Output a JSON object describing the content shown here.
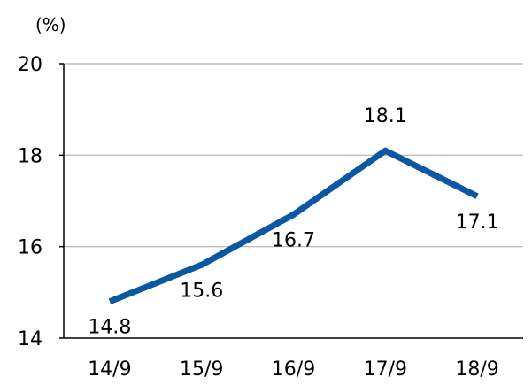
{
  "chart_data": {
    "type": "line",
    "unit": "(%)",
    "categories": [
      "14/9",
      "15/9",
      "16/9",
      "17/9",
      "18/9"
    ],
    "values": [
      14.8,
      15.6,
      16.7,
      18.1,
      17.1
    ],
    "data_labels": [
      "14.8",
      "15.6",
      "16.7",
      "18.1",
      "17.1"
    ],
    "y_ticks": [
      "14",
      "16",
      "18",
      "20"
    ],
    "ylim": [
      14,
      20
    ],
    "grid": true,
    "line_color": "#0a57a3"
  }
}
